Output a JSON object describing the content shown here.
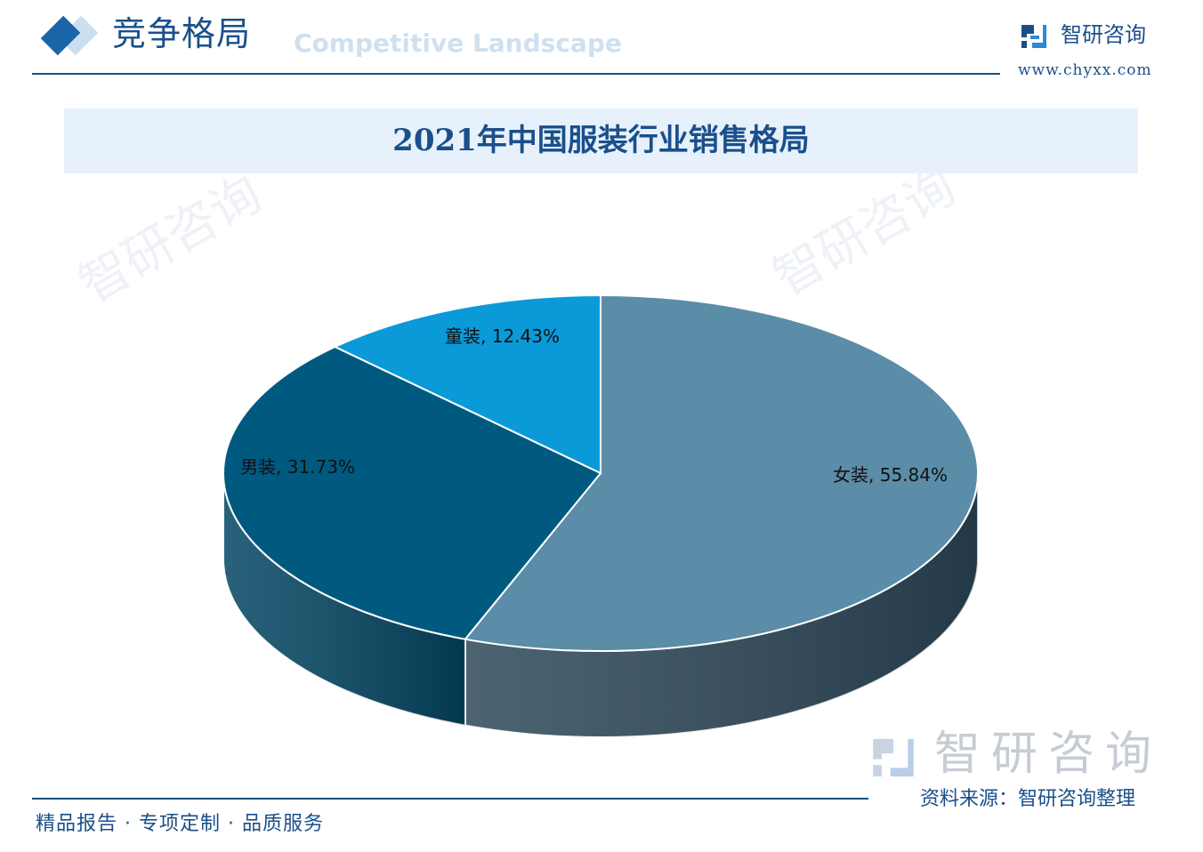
{
  "header": {
    "section_title": "竞争格局",
    "section_subtitle": "Competitive Landscape",
    "logo_text": "智研咨询",
    "logo_url": "www.chyxx.com"
  },
  "watermark": "智研咨询",
  "chart_data": {
    "type": "pie",
    "style": "3d",
    "title": "2021年中国服装行业销售格局",
    "unit": "%",
    "slices": [
      {
        "label": "女装",
        "value": 55.84,
        "display": "女装, 55.84%",
        "color": "#5b8ca8",
        "side_color": "#2c4758"
      },
      {
        "label": "男装",
        "value": 31.73,
        "display": "男装, 31.73%",
        "color": "#005a80",
        "side_color": "#034663"
      },
      {
        "label": "童装",
        "value": 12.43,
        "display": "童装, 12.43%",
        "color": "#0a9ad8",
        "side_color": "#077bb0"
      }
    ]
  },
  "footer": {
    "tagline": "精品报告 · 专项定制 · 品质服务",
    "source": "资料来源：智研咨询整理",
    "big_logo_text": "智研咨询"
  }
}
